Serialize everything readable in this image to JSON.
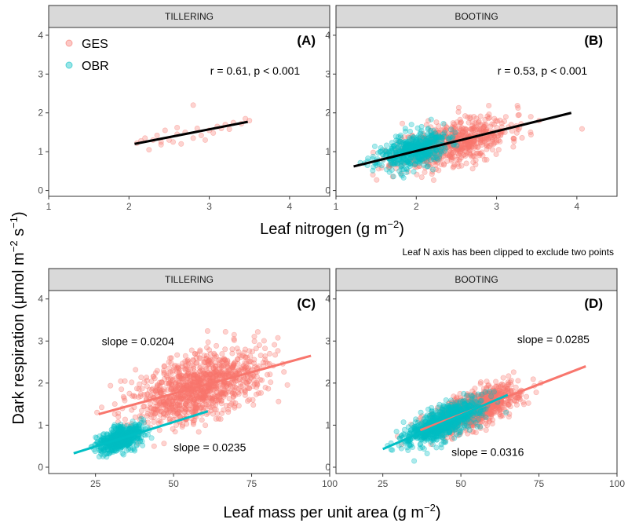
{
  "figure": {
    "ylabel": "Dark respiration (μmol m⁻² s⁻¹)",
    "ylabel_parts": {
      "main": "Dark respiration (μmol m",
      "exp1": "−2",
      "mid": " s",
      "exp2": "−1",
      "end": ")"
    },
    "xlabel_top": {
      "main": "Leaf nitrogen (g m",
      "exp": "−2",
      "end": ")"
    },
    "xlabel_bottom": {
      "main": "Leaf mass per unit area (g m",
      "exp": "−2",
      "end": ")"
    },
    "caption": "Leaf N axis has been clipped to exclude two points",
    "legend": [
      {
        "label": "GES",
        "color": "#F8766D"
      },
      {
        "label": "OBR",
        "color": "#00BFC4"
      }
    ]
  },
  "chart_data": [
    {
      "type": "scatter",
      "panel": "A",
      "strip": "TILLERING",
      "tag": "(A)",
      "annotation": "r = 0.61, p < 0.001",
      "xlim": [
        1,
        4.5
      ],
      "ylim": [
        -0.15,
        4.2
      ],
      "xticks": [
        1,
        2,
        3,
        4
      ],
      "yticks": [
        0,
        1,
        2,
        3,
        4
      ],
      "series": [
        {
          "name": "GES",
          "color": "#F8766D",
          "points": [
            [
              2.1,
              1.22
            ],
            [
              2.2,
              1.35
            ],
            [
              2.25,
              1.05
            ],
            [
              2.3,
              1.3
            ],
            [
              2.35,
              1.42
            ],
            [
              2.4,
              1.18
            ],
            [
              2.45,
              1.55
            ],
            [
              2.5,
              1.3
            ],
            [
              2.55,
              1.25
            ],
            [
              2.6,
              1.45
            ],
            [
              2.65,
              1.2
            ],
            [
              2.7,
              1.5
            ],
            [
              2.8,
              1.35
            ],
            [
              2.85,
              1.6
            ],
            [
              2.9,
              1.42
            ],
            [
              2.95,
              1.3
            ],
            [
              3.0,
              1.55
            ],
            [
              3.05,
              1.48
            ],
            [
              3.1,
              1.65
            ],
            [
              3.15,
              1.6
            ],
            [
              3.2,
              1.7
            ],
            [
              3.25,
              1.58
            ],
            [
              3.3,
              1.75
            ],
            [
              3.4,
              1.72
            ],
            [
              3.45,
              1.85
            ],
            [
              3.5,
              1.8
            ],
            [
              2.8,
              2.2
            ],
            [
              2.6,
              1.62
            ],
            [
              2.4,
              1.25
            ],
            [
              2.15,
              1.28
            ]
          ]
        },
        {
          "name": "OBR",
          "color": "#00BFC4",
          "points": []
        }
      ],
      "lines": [
        {
          "color": "#000000",
          "x": [
            2.07,
            3.48
          ],
          "y": [
            1.2,
            1.77
          ]
        }
      ]
    },
    {
      "type": "scatter",
      "panel": "B",
      "strip": "BOOTING",
      "tag": "(B)",
      "annotation": "r = 0.53, p < 0.001",
      "xlim": [
        1,
        4.5
      ],
      "ylim": [
        -0.15,
        4.2
      ],
      "xticks": [
        1,
        2,
        3,
        4
      ],
      "yticks": [
        0,
        1,
        2,
        3,
        4
      ],
      "series": [
        {
          "name": "GES",
          "color": "#F8766D",
          "cloud": {
            "n": 700,
            "xmean": 2.45,
            "xsd": 0.35,
            "slope": 0.5,
            "intercept": 0.0,
            "ysd": 0.28,
            "seed": 11
          }
        },
        {
          "name": "OBR",
          "color": "#00BFC4",
          "cloud": {
            "n": 500,
            "xmean": 1.95,
            "xsd": 0.22,
            "slope": 0.45,
            "intercept": 0.15,
            "ysd": 0.22,
            "seed": 23
          }
        }
      ],
      "lines": [
        {
          "color": "#000000",
          "x": [
            1.22,
            3.93
          ],
          "y": [
            0.62,
            2.0
          ]
        }
      ]
    },
    {
      "type": "scatter",
      "panel": "C",
      "strip": "TILLERING",
      "tag": "(C)",
      "annotations": [
        {
          "text": "slope = 0.0204",
          "color": "#E32222",
          "x": 27,
          "y": 2.9
        },
        {
          "text": "slope = 0.0235",
          "color": "#1E1EB4",
          "x": 50,
          "y": 0.38
        }
      ],
      "xlim": [
        10,
        100
      ],
      "ylim": [
        -0.15,
        4.2
      ],
      "xticks": [
        25,
        50,
        75,
        100
      ],
      "yticks": [
        0,
        1,
        2,
        3,
        4
      ],
      "series": [
        {
          "name": "GES",
          "color": "#F8766D",
          "cloud": {
            "n": 1100,
            "xmean": 58,
            "xsd": 10,
            "slope": 0.0204,
            "intercept": 0.72,
            "ysd": 0.38,
            "seed": 37
          }
        },
        {
          "name": "OBR",
          "color": "#00BFC4",
          "cloud": {
            "n": 650,
            "xmean": 33,
            "xsd": 3.5,
            "slope": 0.0235,
            "intercept": -0.1,
            "ysd": 0.14,
            "seed": 41
          }
        }
      ],
      "lines": [
        {
          "color": "#F8766D",
          "x": [
            26,
            94
          ],
          "y": [
            1.26,
            2.65
          ]
        },
        {
          "color": "#00BFC4",
          "x": [
            18,
            61
          ],
          "y": [
            0.33,
            1.33
          ]
        }
      ]
    },
    {
      "type": "scatter",
      "panel": "D",
      "strip": "BOOTING",
      "tag": "(D)",
      "annotations": [
        {
          "text": "slope = 0.0285",
          "color": "#E32222",
          "x": 68,
          "y": 2.95
        },
        {
          "text": "slope = 0.0316",
          "color": "#1E1EB4",
          "x": 47,
          "y": 0.27
        }
      ],
      "xlim": [
        10,
        100
      ],
      "ylim": [
        -0.15,
        4.2
      ],
      "xticks": [
        25,
        50,
        75,
        100
      ],
      "yticks": [
        0,
        1,
        2,
        3,
        4
      ],
      "series": [
        {
          "name": "GES",
          "color": "#F8766D",
          "cloud": {
            "n": 1100,
            "xmean": 54,
            "xsd": 7,
            "slope": 0.0285,
            "intercept": -0.17,
            "ysd": 0.2,
            "seed": 53
          }
        },
        {
          "name": "OBR",
          "color": "#00BFC4",
          "cloud": {
            "n": 800,
            "xmean": 44,
            "xsd": 6,
            "slope": 0.0316,
            "intercept": -0.35,
            "ysd": 0.18,
            "seed": 67
          }
        }
      ],
      "lines": [
        {
          "color": "#F8766D",
          "x": [
            37,
            90
          ],
          "y": [
            0.88,
            2.4
          ]
        },
        {
          "color": "#00BFC4",
          "x": [
            25,
            65
          ],
          "y": [
            0.43,
            1.72
          ]
        }
      ]
    }
  ]
}
